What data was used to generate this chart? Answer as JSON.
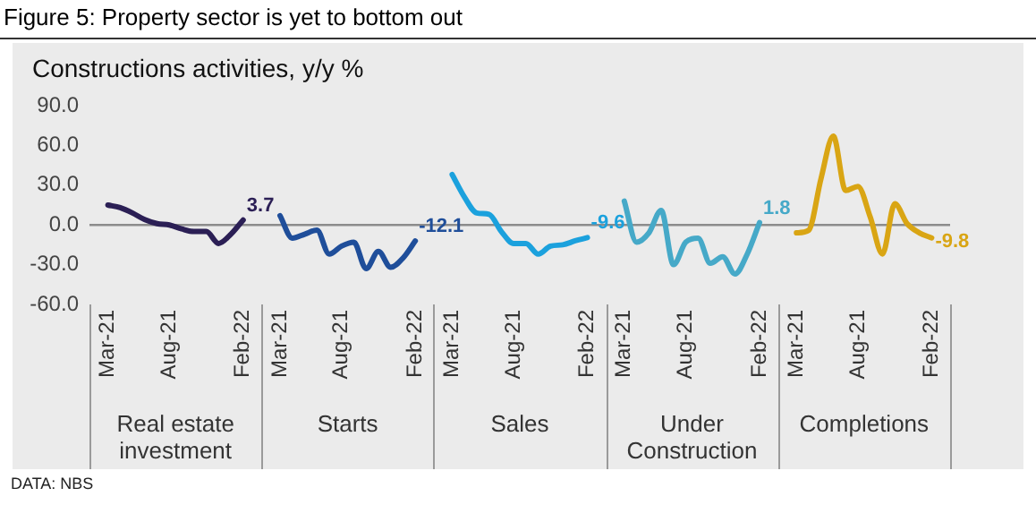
{
  "chart_data": {
    "type": "line",
    "title": "Figure 5: Property sector is yet to bottom out",
    "subtitle": "Constructions activities, y/y %",
    "annotations": [
      "Real estate investment",
      "Starts",
      "Sales",
      "Under Construction",
      "Completions",
      "DATA: NBS"
    ],
    "categories": [
      null,
      "Mar-21",
      null,
      null,
      null,
      null,
      "Aug-21",
      null,
      null,
      null,
      null,
      null,
      "Feb-22",
      null,
      null,
      "Mar-21",
      null,
      null,
      null,
      null,
      "Aug-21",
      null,
      null,
      null,
      null,
      null,
      "Feb-22",
      null,
      null,
      "Mar-21",
      null,
      null,
      null,
      null,
      "Aug-21",
      null,
      null,
      null,
      null,
      null,
      "Feb-22",
      null,
      null,
      "Mar-21",
      null,
      null,
      null,
      null,
      "Aug-21",
      null,
      null,
      null,
      null,
      null,
      "Feb-22",
      null,
      null,
      "Mar-21",
      null,
      null,
      null,
      null,
      "Aug-21",
      null,
      null,
      null,
      null,
      null,
      "Feb-22",
      null
    ],
    "series": [
      {
        "color": "#2b1f55",
        "values": [
          null,
          15,
          13,
          9,
          4,
          1,
          0,
          -3,
          -5,
          -5,
          -14,
          -7,
          3.7,
          null,
          null,
          null,
          null,
          null,
          null,
          null,
          null,
          null,
          null,
          null,
          null,
          null,
          null,
          null,
          null,
          null,
          null,
          null,
          null,
          null,
          null,
          null,
          null,
          null,
          null,
          null,
          null,
          null,
          null,
          null,
          null,
          null,
          null,
          null,
          null,
          null,
          null,
          null,
          null,
          null,
          null,
          null,
          null,
          null,
          null,
          null,
          null,
          null,
          null,
          null,
          null,
          null,
          null,
          null,
          null,
          null
        ],
        "value_labels": [
          null,
          null,
          null,
          null,
          null,
          null,
          null,
          null,
          null,
          null,
          null,
          null,
          "3.7",
          null,
          null,
          null,
          null,
          null,
          null,
          null,
          null,
          null,
          null,
          null,
          null,
          null,
          null,
          null,
          null,
          null,
          null,
          null,
          null,
          null,
          null,
          null,
          null,
          null,
          null,
          null,
          null,
          null,
          null,
          null,
          null,
          null,
          null,
          null,
          null,
          null,
          null,
          null,
          null,
          null,
          null,
          null,
          null,
          null,
          null,
          null,
          null,
          null,
          null,
          null,
          null,
          null,
          null,
          null,
          null,
          null
        ]
      },
      {
        "color": "#1f4e9a",
        "values": [
          null,
          null,
          null,
          null,
          null,
          null,
          null,
          null,
          null,
          null,
          null,
          null,
          null,
          null,
          null,
          7,
          -10,
          -7,
          -4,
          -22,
          -16,
          -13,
          -33,
          -20,
          -32,
          -25,
          -12.1,
          null,
          null,
          null,
          null,
          null,
          null,
          null,
          null,
          null,
          null,
          null,
          null,
          null,
          null,
          null,
          null,
          null,
          null,
          null,
          null,
          null,
          null,
          null,
          null,
          null,
          null,
          null,
          null,
          null,
          null,
          null,
          null,
          null,
          null,
          null,
          null,
          null,
          null,
          null,
          null,
          null,
          null,
          null
        ],
        "value_labels": [
          null,
          null,
          null,
          null,
          null,
          null,
          null,
          null,
          null,
          null,
          null,
          null,
          null,
          null,
          null,
          null,
          null,
          null,
          null,
          null,
          null,
          null,
          null,
          null,
          null,
          null,
          "-12.1",
          null,
          null,
          null,
          null,
          null,
          null,
          null,
          null,
          null,
          null,
          null,
          null,
          null,
          null,
          null,
          null,
          null,
          null,
          null,
          null,
          null,
          null,
          null,
          null,
          null,
          null,
          null,
          null,
          null,
          null,
          null,
          null,
          null,
          null,
          null,
          null,
          null,
          null,
          null,
          null,
          null,
          null,
          null
        ]
      },
      {
        "color": "#1ba1dd",
        "values": [
          null,
          null,
          null,
          null,
          null,
          null,
          null,
          null,
          null,
          null,
          null,
          null,
          null,
          null,
          null,
          null,
          null,
          null,
          null,
          null,
          null,
          null,
          null,
          null,
          null,
          null,
          null,
          null,
          null,
          38,
          21,
          9,
          8,
          -5,
          -14,
          -14,
          -22,
          -16,
          -15,
          -12,
          -9.6,
          null,
          null,
          null,
          null,
          null,
          null,
          null,
          null,
          null,
          null,
          null,
          null,
          null,
          null,
          null,
          null,
          null,
          null,
          null,
          null,
          null,
          null,
          null,
          null,
          null,
          null,
          null,
          null,
          null
        ],
        "value_labels": [
          null,
          null,
          null,
          null,
          null,
          null,
          null,
          null,
          null,
          null,
          null,
          null,
          null,
          null,
          null,
          null,
          null,
          null,
          null,
          null,
          null,
          null,
          null,
          null,
          null,
          null,
          null,
          null,
          null,
          null,
          null,
          null,
          null,
          null,
          null,
          null,
          null,
          null,
          null,
          null,
          "-9.6",
          null,
          null,
          null,
          null,
          null,
          null,
          null,
          null,
          null,
          null,
          null,
          null,
          null,
          null,
          null,
          null,
          null,
          null,
          null,
          null,
          null,
          null,
          null,
          null,
          null,
          null,
          null,
          null,
          null
        ]
      },
      {
        "color": "#46a9c8",
        "values": [
          null,
          null,
          null,
          null,
          null,
          null,
          null,
          null,
          null,
          null,
          null,
          null,
          null,
          null,
          null,
          null,
          null,
          null,
          null,
          null,
          null,
          null,
          null,
          null,
          null,
          null,
          null,
          null,
          null,
          null,
          null,
          null,
          null,
          null,
          null,
          null,
          null,
          null,
          null,
          null,
          null,
          null,
          null,
          18,
          -13,
          -6,
          11,
          -30,
          -13,
          -10,
          -29,
          -24,
          -37,
          -22,
          1.8,
          null,
          null,
          null,
          null,
          null,
          null,
          null,
          null,
          null,
          null,
          null,
          null,
          null,
          null,
          null
        ],
        "value_labels": [
          null,
          null,
          null,
          null,
          null,
          null,
          null,
          null,
          null,
          null,
          null,
          null,
          null,
          null,
          null,
          null,
          null,
          null,
          null,
          null,
          null,
          null,
          null,
          null,
          null,
          null,
          null,
          null,
          null,
          null,
          null,
          null,
          null,
          null,
          null,
          null,
          null,
          null,
          null,
          null,
          null,
          null,
          null,
          null,
          null,
          null,
          null,
          null,
          null,
          null,
          null,
          null,
          null,
          null,
          "1.8",
          null,
          null,
          null,
          null,
          null,
          null,
          null,
          null,
          null,
          null,
          null,
          null,
          null,
          null,
          null
        ]
      },
      {
        "color": "#d9a514",
        "values": [
          null,
          null,
          null,
          null,
          null,
          null,
          null,
          null,
          null,
          null,
          null,
          null,
          null,
          null,
          null,
          null,
          null,
          null,
          null,
          null,
          null,
          null,
          null,
          null,
          null,
          null,
          null,
          null,
          null,
          null,
          null,
          null,
          null,
          null,
          null,
          null,
          null,
          null,
          null,
          null,
          null,
          null,
          null,
          null,
          null,
          null,
          null,
          null,
          null,
          null,
          null,
          null,
          null,
          null,
          null,
          null,
          null,
          -6,
          -4,
          35,
          67,
          26,
          29,
          6,
          -22,
          16,
          1,
          -6,
          -9.8,
          null
        ],
        "value_labels": [
          null,
          null,
          null,
          null,
          null,
          null,
          null,
          null,
          null,
          null,
          null,
          null,
          null,
          null,
          null,
          null,
          null,
          null,
          null,
          null,
          null,
          null,
          null,
          null,
          null,
          null,
          null,
          null,
          null,
          null,
          null,
          null,
          null,
          null,
          null,
          null,
          null,
          null,
          null,
          null,
          null,
          null,
          null,
          null,
          null,
          null,
          null,
          null,
          null,
          null,
          null,
          null,
          null,
          null,
          null,
          null,
          null,
          null,
          null,
          null,
          null,
          null,
          null,
          null,
          null,
          null,
          null,
          null,
          "-9.8",
          null
        ]
      }
    ],
    "ylim": [
      -60,
      90
    ],
    "yticks": [
      {
        "value": -60,
        "label": "-60.0"
      },
      {
        "value": -30,
        "label": "-30.0"
      },
      {
        "value": 0,
        "label": "0.0"
      },
      {
        "value": 30,
        "label": "30.0"
      },
      {
        "value": 60,
        "label": "60.0"
      },
      {
        "value": 90,
        "label": "90.0"
      }
    ],
    "ref_lines": [
      {
        "axis": "y",
        "value": 0,
        "color": "#8c8c8c"
      }
    ],
    "grid": false,
    "legend": false,
    "marker": "none",
    "line_style": "solid"
  }
}
